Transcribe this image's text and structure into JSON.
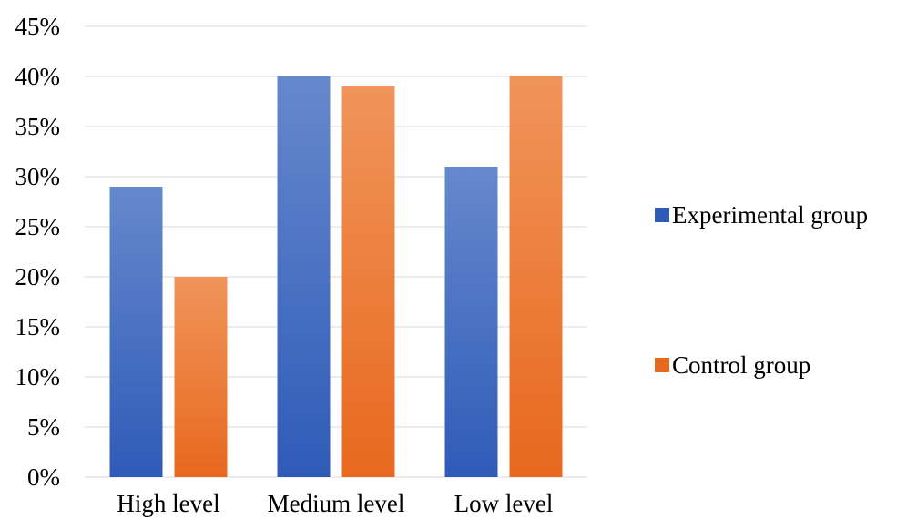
{
  "chart_data": {
    "type": "bar",
    "title": "",
    "xlabel": "",
    "ylabel": "",
    "categories": [
      "High level",
      "Medium level",
      "Low level"
    ],
    "series": [
      {
        "name": "Experimental group",
        "values": [
          29,
          40,
          31
        ],
        "color_top": "#6688cc",
        "color_bottom": "#2f5bb8"
      },
      {
        "name": "Control group",
        "values": [
          20,
          39,
          40
        ],
        "color_top": "#f0945a",
        "color_bottom": "#e8681e"
      }
    ],
    "ylim": [
      0,
      45
    ],
    "ytick_step": 5,
    "ytick_labels": [
      "0%",
      "5%",
      "10%",
      "15%",
      "20%",
      "25%",
      "30%",
      "35%",
      "40%",
      "45%"
    ],
    "grid": true,
    "grid_color": "#d9d9d9",
    "legend": "right"
  }
}
